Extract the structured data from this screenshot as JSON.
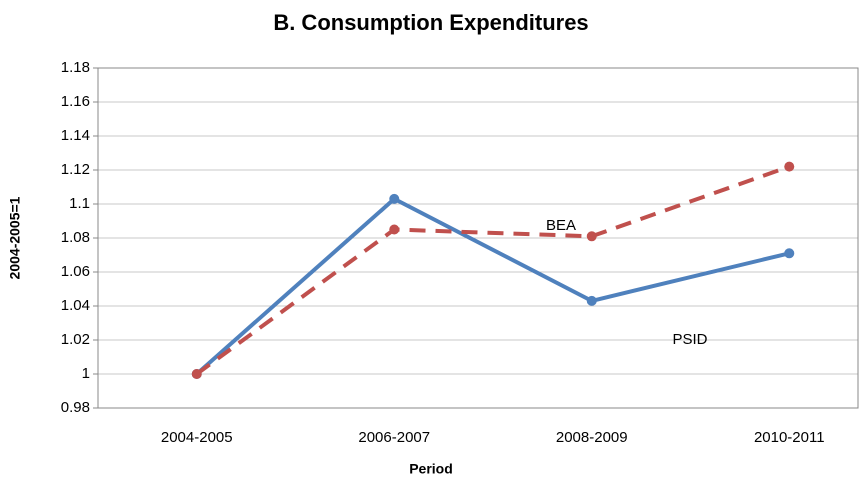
{
  "chart_data": {
    "type": "line",
    "title": "B. Consumption Expenditures",
    "x_label": "Period",
    "y_label": "2004-2005=1",
    "categories": [
      "2004-2005",
      "2006-2007",
      "2008-2009",
      "2010-2011"
    ],
    "series": [
      {
        "name": "PSID",
        "color": "#4f81bd",
        "dashed": false,
        "values": [
          1.0,
          1.103,
          1.043,
          1.071
        ]
      },
      {
        "name": "BEA",
        "color": "#c0504d",
        "dashed": true,
        "values": [
          1.0,
          1.085,
          1.081,
          1.122
        ]
      }
    ],
    "ylim": [
      0.98,
      1.18
    ],
    "yticks": [
      0.98,
      1,
      1.02,
      1.04,
      1.06,
      1.08,
      1.1,
      1.12,
      1.14,
      1.16,
      1.18
    ],
    "grid": true
  }
}
